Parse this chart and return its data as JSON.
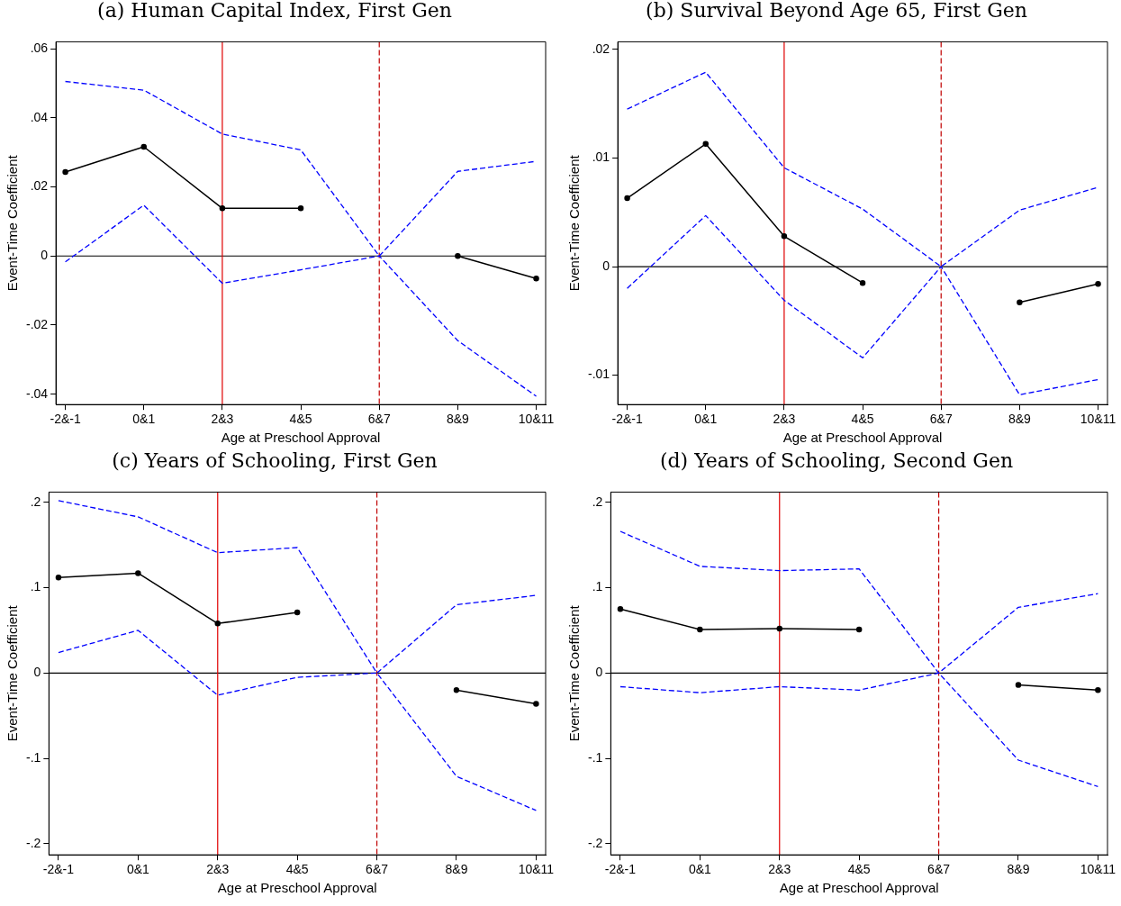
{
  "chart_data": [
    {
      "type": "line",
      "title": "(a) Human Capital Index, First Gen",
      "xlabel": "Age at Preschool Approval",
      "ylabel": "Event-Time Coefficient",
      "categories": [
        "-2&-1",
        "0&1",
        "2&3",
        "4&5",
        "6&7",
        "8&9",
        "10&11"
      ],
      "ylim": [
        -0.043,
        0.062
      ],
      "yticks": [
        {
          "value": -0.04,
          "label": "-.04"
        },
        {
          "value": -0.02,
          "label": "-.02"
        },
        {
          "value": 0,
          "label": "0"
        },
        {
          "value": 0.02,
          "label": ".02"
        },
        {
          "value": 0.04,
          "label": ".04"
        },
        {
          "value": 0.06,
          "label": ".06"
        }
      ],
      "grid": false,
      "legend": false,
      "series": [
        {
          "color": "#000000",
          "marker": "circle",
          "line_style": "solid",
          "values": [
            0.0243,
            0.0316,
            0.0138,
            0.0138,
            null,
            0,
            -0.0065
          ]
        },
        {
          "color": "#0000ff",
          "marker": "none",
          "line_style": "dashed",
          "values": [
            0.0505,
            0.048,
            0.0353,
            0.0307,
            0,
            0.0245,
            0.0274
          ]
        },
        {
          "color": "#0000ff",
          "marker": "none",
          "line_style": "dashed",
          "values": [
            -0.0017,
            0.0147,
            -0.0079,
            -0.004,
            0,
            -0.0245,
            -0.0406
          ]
        }
      ],
      "ref_lines": [
        {
          "axis": "y",
          "value": 0,
          "color": "#000000",
          "line_style": "solid"
        },
        {
          "axis": "x",
          "value": "2&3",
          "color": "#e00000",
          "line_style": "solid"
        },
        {
          "axis": "x",
          "value": "6&7",
          "color": "#c00000",
          "line_style": "dashed"
        }
      ]
    },
    {
      "type": "line",
      "title": "(b) Survival Beyond Age 65, First Gen",
      "xlabel": "Age at Preschool Approval",
      "ylabel": "Event-Time Coefficient",
      "categories": [
        "-2&-1",
        "0&1",
        "2&3",
        "4&5",
        "6&7",
        "8&9",
        "10&11"
      ],
      "ylim": [
        -0.0127,
        0.0207
      ],
      "yticks": [
        {
          "value": -0.01,
          "label": "-.01"
        },
        {
          "value": 0,
          "label": "0"
        },
        {
          "value": 0.01,
          "label": ".01"
        },
        {
          "value": 0.02,
          "label": ".02"
        }
      ],
      "grid": false,
      "legend": false,
      "series": [
        {
          "color": "#000000",
          "marker": "circle",
          "line_style": "solid",
          "values": [
            0.0063,
            0.0113,
            0.0028,
            -0.0015,
            null,
            -0.0033,
            -0.0016
          ]
        },
        {
          "color": "#0000ff",
          "marker": "none",
          "line_style": "dashed",
          "values": [
            0.0145,
            0.0179,
            0.0091,
            0.0053,
            0,
            0.0052,
            0.0073
          ]
        },
        {
          "color": "#0000ff",
          "marker": "none",
          "line_style": "dashed",
          "values": [
            -0.002,
            0.0047,
            -0.0031,
            -0.0084,
            0,
            -0.0118,
            -0.0104
          ]
        }
      ],
      "ref_lines": [
        {
          "axis": "y",
          "value": 0,
          "color": "#000000",
          "line_style": "solid"
        },
        {
          "axis": "x",
          "value": "2&3",
          "color": "#e00000",
          "line_style": "solid"
        },
        {
          "axis": "x",
          "value": "6&7",
          "color": "#c00000",
          "line_style": "dashed"
        }
      ]
    },
    {
      "type": "line",
      "title": "(c) Years of Schooling, First Gen",
      "xlabel": "Age at Preschool Approval",
      "ylabel": "Event-Time Coefficient",
      "categories": [
        "-2&-1",
        "0&1",
        "2&3",
        "4&5",
        "6&7",
        "8&9",
        "10&11"
      ],
      "ylim": [
        -0.213,
        0.212
      ],
      "yticks": [
        {
          "value": -0.2,
          "label": "-.2"
        },
        {
          "value": -0.1,
          "label": "-.1"
        },
        {
          "value": 0,
          "label": "0"
        },
        {
          "value": 0.1,
          "label": ".1"
        },
        {
          "value": 0.2,
          "label": ".2"
        }
      ],
      "grid": false,
      "legend": false,
      "series": [
        {
          "color": "#000000",
          "marker": "circle",
          "line_style": "solid",
          "values": [
            0.112,
            0.117,
            0.058,
            0.071,
            null,
            -0.02,
            -0.036
          ]
        },
        {
          "color": "#0000ff",
          "marker": "none",
          "line_style": "dashed",
          "values": [
            0.202,
            0.183,
            0.141,
            0.147,
            0,
            0.08,
            0.091
          ]
        },
        {
          "color": "#0000ff",
          "marker": "none",
          "line_style": "dashed",
          "values": [
            0.024,
            0.05,
            -0.026,
            -0.005,
            0,
            -0.121,
            -0.161
          ]
        }
      ],
      "ref_lines": [
        {
          "axis": "y",
          "value": 0,
          "color": "#000000",
          "line_style": "solid"
        },
        {
          "axis": "x",
          "value": "2&3",
          "color": "#e00000",
          "line_style": "solid"
        },
        {
          "axis": "x",
          "value": "6&7",
          "color": "#c00000",
          "line_style": "dashed"
        }
      ]
    },
    {
      "type": "line",
      "title": "(d) Years of Schooling, Second Gen",
      "xlabel": "Age at Preschool Approval",
      "ylabel": "Event-Time Coefficient",
      "categories": [
        "-2&-1",
        "0&1",
        "2&3",
        "4&5",
        "6&7",
        "8&9",
        "10&11"
      ],
      "ylim": [
        -0.213,
        0.212
      ],
      "yticks": [
        {
          "value": -0.2,
          "label": "-.2"
        },
        {
          "value": -0.1,
          "label": "-.1"
        },
        {
          "value": 0,
          "label": "0"
        },
        {
          "value": 0.1,
          "label": ".1"
        },
        {
          "value": 0.2,
          "label": ".2"
        }
      ],
      "grid": false,
      "legend": false,
      "series": [
        {
          "color": "#000000",
          "marker": "circle",
          "line_style": "solid",
          "values": [
            0.075,
            0.051,
            0.052,
            0.051,
            null,
            -0.014,
            -0.02
          ]
        },
        {
          "color": "#0000ff",
          "marker": "none",
          "line_style": "dashed",
          "values": [
            0.166,
            0.125,
            0.12,
            0.122,
            0,
            0.077,
            0.093
          ]
        },
        {
          "color": "#0000ff",
          "marker": "none",
          "line_style": "dashed",
          "values": [
            -0.016,
            -0.023,
            -0.016,
            -0.02,
            0,
            -0.102,
            -0.133
          ]
        }
      ],
      "ref_lines": [
        {
          "axis": "y",
          "value": 0,
          "color": "#000000",
          "line_style": "solid"
        },
        {
          "axis": "x",
          "value": "2&3",
          "color": "#e00000",
          "line_style": "solid"
        },
        {
          "axis": "x",
          "value": "6&7",
          "color": "#c00000",
          "line_style": "dashed"
        }
      ]
    }
  ]
}
